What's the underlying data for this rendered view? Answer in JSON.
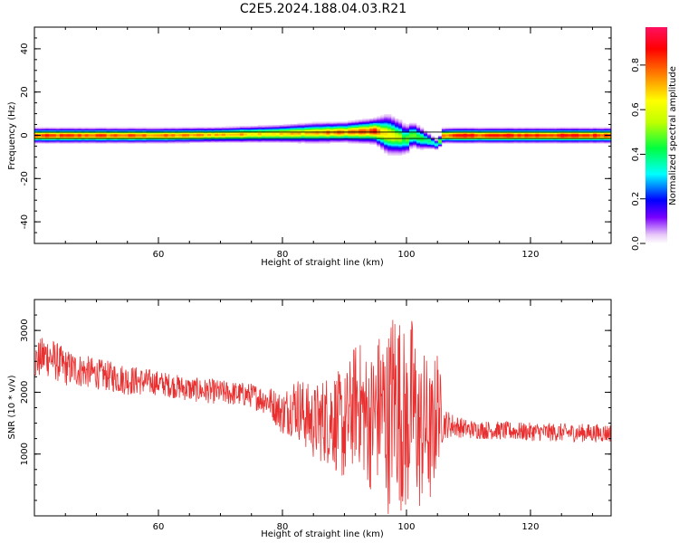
{
  "title": "C2E5.2024.188.04.03.R21",
  "colorbar": {
    "label": "Normalized spectral amplitude",
    "ticks": [
      0.0,
      0.2,
      0.4,
      0.6,
      0.8
    ],
    "tick_labels": [
      "0.0",
      "0.2",
      "0.4",
      "0.6",
      "0.8"
    ],
    "range": [
      0.0,
      0.97
    ]
  },
  "chart_data": [
    {
      "type": "heatmap",
      "xlabel": "Height of straight line (km)",
      "ylabel": "Frequency (Hz)",
      "xlim": [
        40,
        133
      ],
      "ylim": [
        -50,
        50
      ],
      "xticks": [
        60,
        80,
        100,
        120
      ],
      "xtick_labels": [
        "60",
        "80",
        "100",
        "120"
      ],
      "yticks": [
        -40,
        -20,
        0,
        20,
        40
      ],
      "ytick_labels": [
        "-40",
        "-20",
        "0",
        "20",
        "40"
      ],
      "reference_lines_hz": [
        1.5,
        -1.5
      ],
      "ridge": {
        "x_km": [
          40,
          50,
          60,
          70,
          80,
          85,
          90,
          95,
          97,
          99,
          100,
          101,
          102,
          103,
          104,
          105,
          106,
          110,
          120,
          133
        ],
        "center_hz": [
          0,
          0,
          0,
          0.3,
          0.8,
          1.2,
          1.5,
          2,
          0.5,
          -1,
          -2,
          0.5,
          -1,
          -2,
          -3,
          -4.5,
          0,
          0,
          0,
          0
        ],
        "halfwidth_hz": [
          3,
          3,
          3,
          3,
          3.5,
          4,
          4,
          5,
          8,
          7,
          6,
          5,
          5,
          4,
          3,
          2,
          3,
          3,
          3,
          3
        ],
        "peak_amplitude": [
          0.9,
          0.9,
          0.85,
          0.8,
          0.75,
          0.8,
          0.85,
          0.9,
          0.7,
          0.6,
          0.5,
          0.6,
          0.5,
          0.45,
          0.4,
          0.35,
          0.9,
          0.95,
          0.95,
          0.95
        ]
      }
    },
    {
      "type": "line",
      "xlabel": "Height of straight line (km)",
      "ylabel": "SNR (10 * v/v)",
      "xlim": [
        40,
        133
      ],
      "ylim": [
        0,
        3500
      ],
      "xticks": [
        60,
        80,
        100,
        120
      ],
      "xtick_labels": [
        "60",
        "80",
        "100",
        "120"
      ],
      "yticks": [
        1000,
        2000,
        3000
      ],
      "ytick_labels": [
        "1000",
        "2000",
        "3000"
      ],
      "series": [
        {
          "color": "#e83030",
          "x": [
            40,
            42,
            45,
            50,
            55,
            60,
            65,
            70,
            75,
            78,
            80,
            82,
            85,
            88,
            90,
            92,
            94,
            96,
            97,
            98,
            99,
            100,
            101,
            102,
            103,
            104,
            105,
            106,
            108,
            110,
            115,
            120,
            125,
            130,
            133
          ],
          "y": [
            2500,
            2600,
            2400,
            2300,
            2200,
            2150,
            2050,
            2000,
            1950,
            1850,
            1650,
            1800,
            1500,
            1600,
            1400,
            1900,
            1500,
            1800,
            1500,
            2000,
            1700,
            1400,
            1900,
            1300,
            1500,
            1200,
            1800,
            1500,
            1450,
            1400,
            1380,
            1360,
            1350,
            1340,
            1340
          ],
          "noise_amplitude": [
            300,
            350,
            300,
            250,
            250,
            200,
            200,
            200,
            200,
            250,
            350,
            500,
            600,
            800,
            900,
            1000,
            1100,
            1300,
            1500,
            1600,
            1600,
            1500,
            1400,
            1300,
            1200,
            1100,
            1000,
            250,
            180,
            150,
            150,
            150,
            150,
            150,
            150
          ]
        }
      ]
    }
  ]
}
